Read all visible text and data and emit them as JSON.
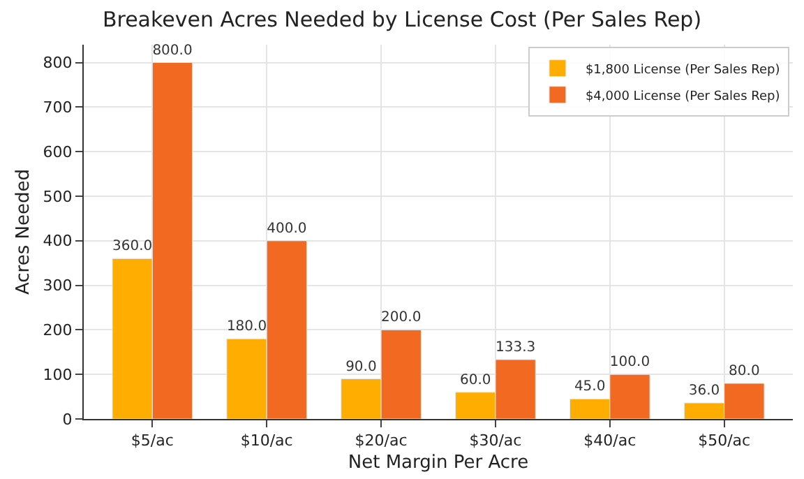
{
  "chart_data": {
    "type": "bar",
    "title": "Breakeven Acres Needed by License Cost (Per Sales Rep)",
    "xlabel": "Net Margin Per Acre",
    "ylabel": "Acres Needed",
    "categories": [
      "$5/ac",
      "$10/ac",
      "$20/ac",
      "$30/ac",
      "$40/ac",
      "$50/ac"
    ],
    "series": [
      {
        "name": "$1,800 License (Per Sales Rep)",
        "color": "#ffad00",
        "values": [
          360,
          180,
          90,
          60,
          45,
          36
        ],
        "value_labels": [
          "360.0",
          "180.0",
          "90.0",
          "60.0",
          "45.0",
          "36.0"
        ]
      },
      {
        "name": "$4,000 License (Per Sales Rep)",
        "color": "#f26a21",
        "values": [
          800,
          400,
          200,
          133.3,
          100,
          80
        ],
        "value_labels": [
          "800.0",
          "400.0",
          "200.0",
          "133.3",
          "100.0",
          "80.0"
        ]
      }
    ],
    "ylim": [
      0,
      840
    ],
    "yticks": [
      0,
      100,
      200,
      300,
      400,
      500,
      600,
      700,
      800
    ],
    "grid": true,
    "legend": "top right"
  }
}
